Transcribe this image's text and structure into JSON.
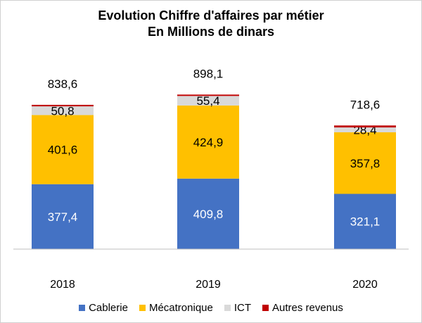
{
  "chart_data": {
    "type": "bar",
    "stacked": true,
    "title": "Evolution Chiffre d'affaires par métier",
    "subtitle": "En Millions  de dinars",
    "categories": [
      "2018",
      "2019",
      "2020"
    ],
    "series": [
      {
        "name": "Cablerie",
        "color": "#4472C4",
        "values": [
          377.4,
          409.8,
          321.1
        ],
        "labels": [
          "377,4",
          "409,8",
          "321,1"
        ]
      },
      {
        "name": "Mécatronique",
        "color": "#FFC000",
        "values": [
          401.6,
          424.9,
          357.8
        ],
        "labels": [
          "401,6",
          "424,9",
          "357,8"
        ]
      },
      {
        "name": "ICT",
        "color": "#D9D9D9",
        "values": [
          50.8,
          55.4,
          28.4
        ],
        "labels": [
          "50,8",
          "55,4",
          "28,4"
        ]
      },
      {
        "name": "Autres revenus",
        "color": "#C00000",
        "values": [
          8.8,
          8.0,
          11.3
        ]
      }
    ],
    "totals": [
      838.6,
      898.1,
      718.6
    ],
    "total_labels": [
      "838,6",
      "898,1",
      "718,6"
    ],
    "ylim": [
      0,
      1000
    ],
    "grid": false,
    "legend_position": "bottom"
  }
}
